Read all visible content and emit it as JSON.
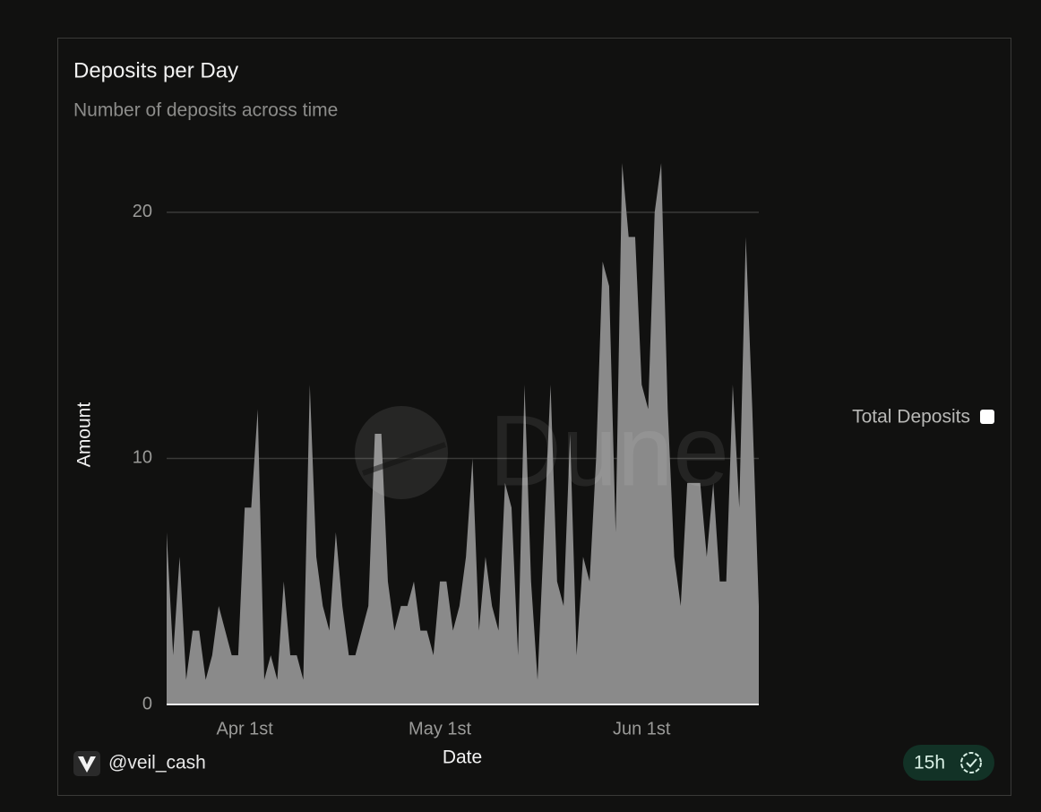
{
  "chart_data": {
    "type": "area",
    "title": "Deposits per Day",
    "subtitle": "Number of deposits across time",
    "x_label": "Date",
    "y_label": "Amount",
    "watermark": "Dune",
    "author": "@veil_cash",
    "refresh_badge": "15h",
    "categories": [
      "Mar 20",
      "Mar 21",
      "Mar 22",
      "Mar 23",
      "Mar 24",
      "Mar 25",
      "Mar 26",
      "Mar 27",
      "Mar 28",
      "Mar 29",
      "Mar 30",
      "Mar 31",
      "Apr 1",
      "Apr 2",
      "Apr 3",
      "Apr 4",
      "Apr 5",
      "Apr 6",
      "Apr 7",
      "Apr 8",
      "Apr 9",
      "Apr 10",
      "Apr 11",
      "Apr 12",
      "Apr 13",
      "Apr 14",
      "Apr 15",
      "Apr 16",
      "Apr 17",
      "Apr 18",
      "Apr 19",
      "Apr 20",
      "Apr 21",
      "Apr 22",
      "Apr 23",
      "Apr 24",
      "Apr 25",
      "Apr 26",
      "Apr 27",
      "Apr 28",
      "Apr 29",
      "Apr 30",
      "May 1",
      "May 2",
      "May 3",
      "May 4",
      "May 5",
      "May 6",
      "May 7",
      "May 8",
      "May 9",
      "May 10",
      "May 11",
      "May 12",
      "May 13",
      "May 14",
      "May 15",
      "May 16",
      "May 17",
      "May 18",
      "May 19",
      "May 20",
      "May 21",
      "May 22",
      "May 23",
      "May 24",
      "May 25",
      "May 26",
      "May 27",
      "May 28",
      "May 29",
      "May 30",
      "May 31",
      "Jun 1",
      "Jun 2",
      "Jun 3",
      "Jun 4",
      "Jun 5",
      "Jun 6",
      "Jun 7",
      "Jun 8",
      "Jun 9",
      "Jun 10",
      "Jun 11",
      "Jun 12",
      "Jun 13",
      "Jun 14",
      "Jun 15",
      "Jun 16",
      "Jun 17",
      "Jun 18",
      "Jun 19"
    ],
    "series": [
      {
        "name": "Total Deposits",
        "color": "#8a8a8a",
        "values": [
          7,
          2,
          6,
          1,
          3,
          3,
          1,
          2,
          4,
          3,
          2,
          2,
          8,
          8,
          12,
          1,
          2,
          1,
          5,
          2,
          2,
          1,
          13,
          6,
          4,
          3,
          7,
          4,
          2,
          2,
          3,
          4,
          11,
          11,
          5,
          3,
          4,
          4,
          5,
          3,
          3,
          2,
          5,
          5,
          3,
          4,
          6,
          10,
          3,
          6,
          4,
          3,
          9,
          8,
          2,
          13,
          5,
          1,
          7,
          13,
          5,
          4,
          11,
          2,
          6,
          5,
          10,
          18,
          17,
          7,
          22,
          19,
          19,
          13,
          12,
          20,
          22,
          12,
          6,
          4,
          9,
          9,
          9,
          6,
          9,
          5,
          5,
          13,
          8,
          19,
          12,
          4
        ]
      }
    ],
    "ylim": [
      0,
      22
    ],
    "yticks": [
      0,
      10,
      20
    ],
    "xticks": [
      {
        "value": "Apr 1",
        "label": "Apr 1st"
      },
      {
        "value": "May 1",
        "label": "May 1st"
      },
      {
        "value": "Jun 1",
        "label": "Jun 1st"
      }
    ],
    "grid": true,
    "legend": "right"
  }
}
